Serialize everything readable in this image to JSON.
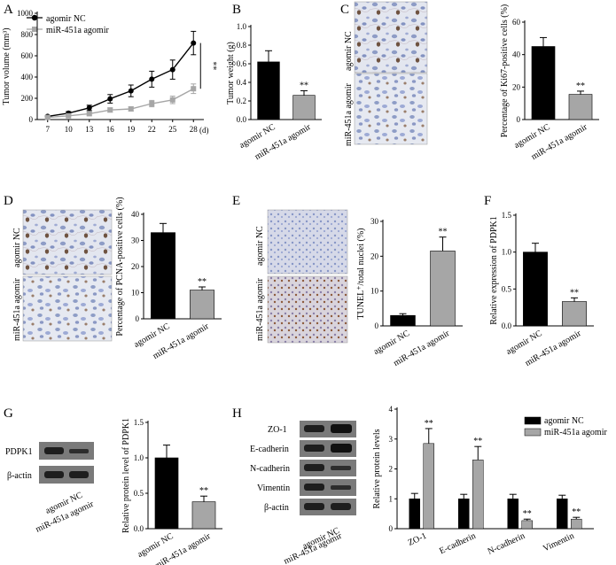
{
  "colors": {
    "nc": "#000000",
    "agomir": "#a6a6a6",
    "stain_bg": "#dfe3ee",
    "blot_bg": "#7a7a7a"
  },
  "legend_labels": [
    "agomir NC",
    "miR-451a agomir"
  ],
  "image_labels": [
    "agomir NC",
    "miR-451a agomir"
  ],
  "panel_labels": [
    "A",
    "B",
    "C",
    "D",
    "E",
    "F",
    "G",
    "H"
  ],
  "blots": {
    "G": [
      "PDPK1",
      "β-actin"
    ],
    "H": [
      "ZO-1",
      "E-cadherin",
      "N-cadherin",
      "Vimentin",
      "β-actin"
    ]
  },
  "chart_data": [
    {
      "id": "A",
      "type": "line",
      "ylabel": "Tumor volume (mm³)",
      "xunit": "(d)",
      "x": [
        7,
        10,
        13,
        16,
        19,
        22,
        25,
        28
      ],
      "ylim": [
        0,
        1000
      ],
      "yticks": [
        0,
        200,
        400,
        600,
        800,
        1000
      ],
      "series": [
        {
          "name": "agomir NC",
          "values": [
            30,
            60,
            110,
            195,
            270,
            380,
            470,
            720
          ],
          "errors": [
            5,
            15,
            25,
            40,
            55,
            75,
            90,
            110
          ]
        },
        {
          "name": "miR-451a agomir",
          "values": [
            20,
            35,
            55,
            90,
            100,
            150,
            185,
            290
          ],
          "errors": [
            5,
            10,
            15,
            20,
            20,
            30,
            35,
            45
          ]
        }
      ],
      "annotation": "**"
    },
    {
      "id": "B",
      "type": "bar",
      "ylabel": "Tumor weight (g)",
      "categories": [
        "agomir NC",
        "miR-451a agomir"
      ],
      "values": [
        0.62,
        0.26
      ],
      "errors": [
        0.12,
        0.05
      ],
      "ylim": [
        0,
        1.0
      ],
      "yticks": [
        0,
        0.2,
        0.4,
        0.6,
        0.8,
        1.0
      ],
      "sig": [
        "",
        "**"
      ]
    },
    {
      "id": "C",
      "type": "bar",
      "ylabel": "Percentage of Ki67-positive cells (%)",
      "categories": [
        "agomir NC",
        "miR-451a agomir"
      ],
      "values": [
        45,
        15.5
      ],
      "errors": [
        5.5,
        2
      ],
      "ylim": [
        0,
        60
      ],
      "yticks": [
        0,
        20,
        40,
        60
      ],
      "sig": [
        "",
        "**"
      ]
    },
    {
      "id": "D",
      "type": "bar",
      "ylabel": "Percentage of PCNA-positive cells (%)",
      "categories": [
        "agomir NC",
        "miR-451a agomir"
      ],
      "values": [
        33,
        11
      ],
      "errors": [
        3.5,
        1.2
      ],
      "ylim": [
        0,
        40
      ],
      "yticks": [
        0,
        10,
        20,
        30,
        40
      ],
      "sig": [
        "",
        "**"
      ]
    },
    {
      "id": "E",
      "type": "bar",
      "ylabel": "TUNEL⁺/total nuclei (%)",
      "categories": [
        "agomir NC",
        "miR-451a agomir"
      ],
      "values": [
        3,
        21.5
      ],
      "errors": [
        0.5,
        4
      ],
      "ylim": [
        0,
        30
      ],
      "yticks": [
        0,
        10,
        20,
        30
      ],
      "sig": [
        "",
        "**"
      ]
    },
    {
      "id": "F",
      "type": "bar",
      "ylabel": "Relative expression of PDPK1",
      "categories": [
        "agomir NC",
        "miR-451a agomir"
      ],
      "values": [
        1.0,
        0.33
      ],
      "errors": [
        0.12,
        0.05
      ],
      "ylim": [
        0,
        1.5
      ],
      "yticks": [
        0.0,
        0.5,
        1.0,
        1.5
      ],
      "sig": [
        "",
        "**"
      ]
    },
    {
      "id": "G",
      "type": "bar",
      "ylabel": "Relative protein level of PDPK1",
      "categories": [
        "agomir NC",
        "miR-451a agomir"
      ],
      "values": [
        1.0,
        0.38
      ],
      "errors": [
        0.18,
        0.08
      ],
      "ylim": [
        0,
        1.5
      ],
      "yticks": [
        0.0,
        0.5,
        1.0,
        1.5
      ],
      "sig": [
        "",
        "**"
      ]
    },
    {
      "id": "H",
      "type": "bar",
      "ylabel": "Relative protein levels",
      "categories": [
        "ZO-1",
        "E-cadherin",
        "N-cadherin",
        "Vimentin"
      ],
      "series": [
        {
          "name": "agomir NC",
          "values": [
            1.0,
            1.0,
            1.0,
            1.0
          ],
          "errors": [
            0.18,
            0.15,
            0.15,
            0.12
          ]
        },
        {
          "name": "miR-451a agomir",
          "values": [
            2.85,
            2.3,
            0.27,
            0.32
          ],
          "errors": [
            0.5,
            0.45,
            0.05,
            0.06
          ]
        }
      ],
      "ylim": [
        0,
        4
      ],
      "yticks": [
        0,
        1,
        2,
        3,
        4
      ],
      "sig": [
        "**",
        "**",
        "**",
        "**"
      ],
      "legend": "top-right"
    }
  ]
}
